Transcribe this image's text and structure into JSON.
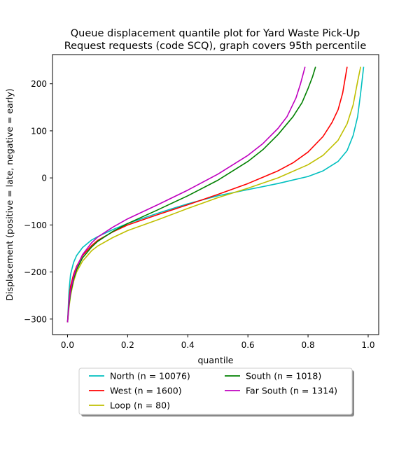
{
  "chart_data": {
    "type": "line",
    "title_lines": [
      "Queue displacement quantile plot for Yard Waste Pick-Up",
      "Request  requests (code SCQ), graph covers 95th percentile"
    ],
    "xlabel": "quantile",
    "ylabel": "Displacement (positive = late, negative = early)",
    "xlim": [
      -0.05,
      1.035
    ],
    "ylim": [
      -333,
      262
    ],
    "xticks": [
      0.0,
      0.2,
      0.4,
      0.6,
      0.8,
      1.0
    ],
    "xtick_labels": [
      "0.0",
      "0.2",
      "0.4",
      "0.6",
      "0.8",
      "1.0"
    ],
    "yticks": [
      -300,
      -200,
      -100,
      0,
      100,
      200
    ],
    "ytick_labels": [
      "−300",
      "−200",
      "−100",
      "0",
      "100",
      "200"
    ],
    "grid": false,
    "legend_position": "bottom-center",
    "legend_columns": 2,
    "series": [
      {
        "name": "North (n = 10076)",
        "color": "#00bfbf",
        "points": [
          [
            0.0,
            -307
          ],
          [
            0.005,
            -240
          ],
          [
            0.01,
            -205
          ],
          [
            0.02,
            -180
          ],
          [
            0.03,
            -165
          ],
          [
            0.05,
            -148
          ],
          [
            0.08,
            -132
          ],
          [
            0.1,
            -125
          ],
          [
            0.15,
            -110
          ],
          [
            0.2,
            -97
          ],
          [
            0.3,
            -75
          ],
          [
            0.4,
            -55
          ],
          [
            0.5,
            -38
          ],
          [
            0.6,
            -25
          ],
          [
            0.7,
            -12
          ],
          [
            0.8,
            3
          ],
          [
            0.85,
            15
          ],
          [
            0.9,
            35
          ],
          [
            0.93,
            58
          ],
          [
            0.95,
            90
          ],
          [
            0.965,
            130
          ],
          [
            0.975,
            180
          ],
          [
            0.985,
            236
          ]
        ]
      },
      {
        "name": "West (n = 1600)",
        "color": "#ff0000",
        "points": [
          [
            0.0,
            -307
          ],
          [
            0.005,
            -260
          ],
          [
            0.01,
            -230
          ],
          [
            0.02,
            -205
          ],
          [
            0.03,
            -188
          ],
          [
            0.05,
            -165
          ],
          [
            0.08,
            -144
          ],
          [
            0.1,
            -133
          ],
          [
            0.15,
            -115
          ],
          [
            0.2,
            -100
          ],
          [
            0.3,
            -78
          ],
          [
            0.4,
            -57
          ],
          [
            0.5,
            -35
          ],
          [
            0.6,
            -12
          ],
          [
            0.7,
            15
          ],
          [
            0.75,
            32
          ],
          [
            0.8,
            55
          ],
          [
            0.85,
            88
          ],
          [
            0.88,
            118
          ],
          [
            0.9,
            145
          ],
          [
            0.915,
            180
          ],
          [
            0.93,
            236
          ]
        ]
      },
      {
        "name": "Loop (n = 80)",
        "color": "#bfbf00",
        "points": [
          [
            0.0,
            -307
          ],
          [
            0.005,
            -275
          ],
          [
            0.01,
            -250
          ],
          [
            0.02,
            -220
          ],
          [
            0.03,
            -200
          ],
          [
            0.05,
            -177
          ],
          [
            0.08,
            -155
          ],
          [
            0.1,
            -145
          ],
          [
            0.15,
            -127
          ],
          [
            0.2,
            -112
          ],
          [
            0.3,
            -89
          ],
          [
            0.4,
            -65
          ],
          [
            0.5,
            -42
          ],
          [
            0.6,
            -22
          ],
          [
            0.7,
            0
          ],
          [
            0.8,
            28
          ],
          [
            0.85,
            48
          ],
          [
            0.9,
            80
          ],
          [
            0.93,
            115
          ],
          [
            0.95,
            155
          ],
          [
            0.965,
            205
          ],
          [
            0.975,
            236
          ]
        ]
      },
      {
        "name": "South (n = 1018)",
        "color": "#008000",
        "points": [
          [
            0.0,
            -307
          ],
          [
            0.005,
            -270
          ],
          [
            0.01,
            -245
          ],
          [
            0.02,
            -215
          ],
          [
            0.03,
            -195
          ],
          [
            0.05,
            -170
          ],
          [
            0.08,
            -147
          ],
          [
            0.1,
            -135
          ],
          [
            0.15,
            -114
          ],
          [
            0.2,
            -97
          ],
          [
            0.3,
            -68
          ],
          [
            0.4,
            -38
          ],
          [
            0.5,
            -5
          ],
          [
            0.6,
            35
          ],
          [
            0.65,
            60
          ],
          [
            0.7,
            92
          ],
          [
            0.75,
            130
          ],
          [
            0.78,
            160
          ],
          [
            0.8,
            190
          ],
          [
            0.815,
            215
          ],
          [
            0.825,
            236
          ]
        ]
      },
      {
        "name": "Far South (n = 1314)",
        "color": "#bf00bf",
        "points": [
          [
            0.0,
            -307
          ],
          [
            0.005,
            -265
          ],
          [
            0.01,
            -240
          ],
          [
            0.02,
            -210
          ],
          [
            0.03,
            -190
          ],
          [
            0.05,
            -163
          ],
          [
            0.08,
            -138
          ],
          [
            0.1,
            -126
          ],
          [
            0.15,
            -105
          ],
          [
            0.2,
            -87
          ],
          [
            0.3,
            -57
          ],
          [
            0.4,
            -26
          ],
          [
            0.5,
            8
          ],
          [
            0.6,
            48
          ],
          [
            0.65,
            73
          ],
          [
            0.7,
            105
          ],
          [
            0.73,
            130
          ],
          [
            0.76,
            170
          ],
          [
            0.775,
            200
          ],
          [
            0.79,
            236
          ]
        ]
      }
    ]
  }
}
